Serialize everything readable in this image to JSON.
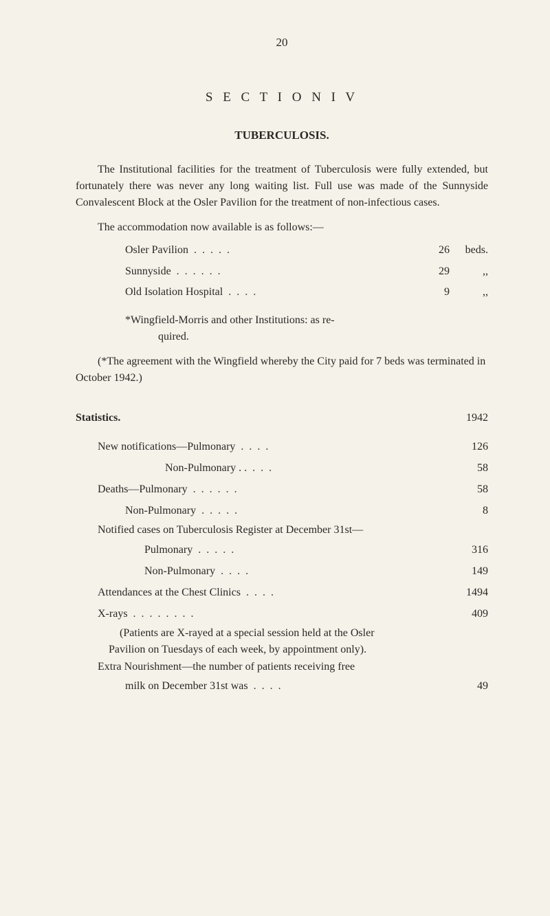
{
  "page_number": "20",
  "section_title": "S E C T I O N   I V",
  "subtitle": "TUBERCULOSIS.",
  "intro_paragraph": "The Institutional facilities for the treatment of Tuberculosis were fully extended, but fortunately there was never any long waiting list. Full use was made of the Sunnyside Convalescent Block at the Osler Pavilion for the treatment of non-infectious cases.",
  "accommodation_intro": "The accommodation now available is as follows:—",
  "accommodation": [
    {
      "label": "Osler Pavilion",
      "value": "26",
      "unit": "beds."
    },
    {
      "label": "Sunnyside",
      "value": "29",
      "unit": ",,"
    },
    {
      "label": "Old Isolation Hospital",
      "value": "9",
      "unit": ",,"
    }
  ],
  "wingfield_line1": "*Wingfield-Morris and other Institutions: as re-",
  "wingfield_line2": "quired.",
  "note_paragraph": "(*The agreement with the Wingfield whereby the City paid for 7 beds was terminated in October 1942.)",
  "statistics_label": "Statistics.",
  "year": "1942",
  "stats": {
    "new_pulmonary_label": "New notifications—Pulmonary",
    "new_pulmonary_value": "126",
    "new_nonpulmonary_label": "Non-Pulmonary . .",
    "new_nonpulmonary_value": "58",
    "deaths_pulmonary_label": "Deaths—Pulmonary",
    "deaths_pulmonary_value": "58",
    "deaths_nonpulmonary_label": "Non-Pulmonary",
    "deaths_nonpulmonary_value": "8",
    "notified_intro": "Notified cases on Tuberculosis Register at December 31st—",
    "notified_pulmonary_label": "Pulmonary",
    "notified_pulmonary_value": "316",
    "notified_nonpulmonary_label": "Non-Pulmonary",
    "notified_nonpulmonary_value": "149",
    "attendances_label": "Attendances at the Chest Clinics",
    "attendances_value": "1494",
    "xrays_label": "X-rays",
    "xrays_value": "409",
    "xrays_note1": "(Patients are X-rayed at a special session held at the Osler",
    "xrays_note2": "Pavilion on Tuesdays of each week, by appointment only).",
    "extra_label1": "Extra Nourishment—the number of patients receiving free",
    "extra_label2": "milk on December 31st was",
    "extra_value": "49"
  }
}
